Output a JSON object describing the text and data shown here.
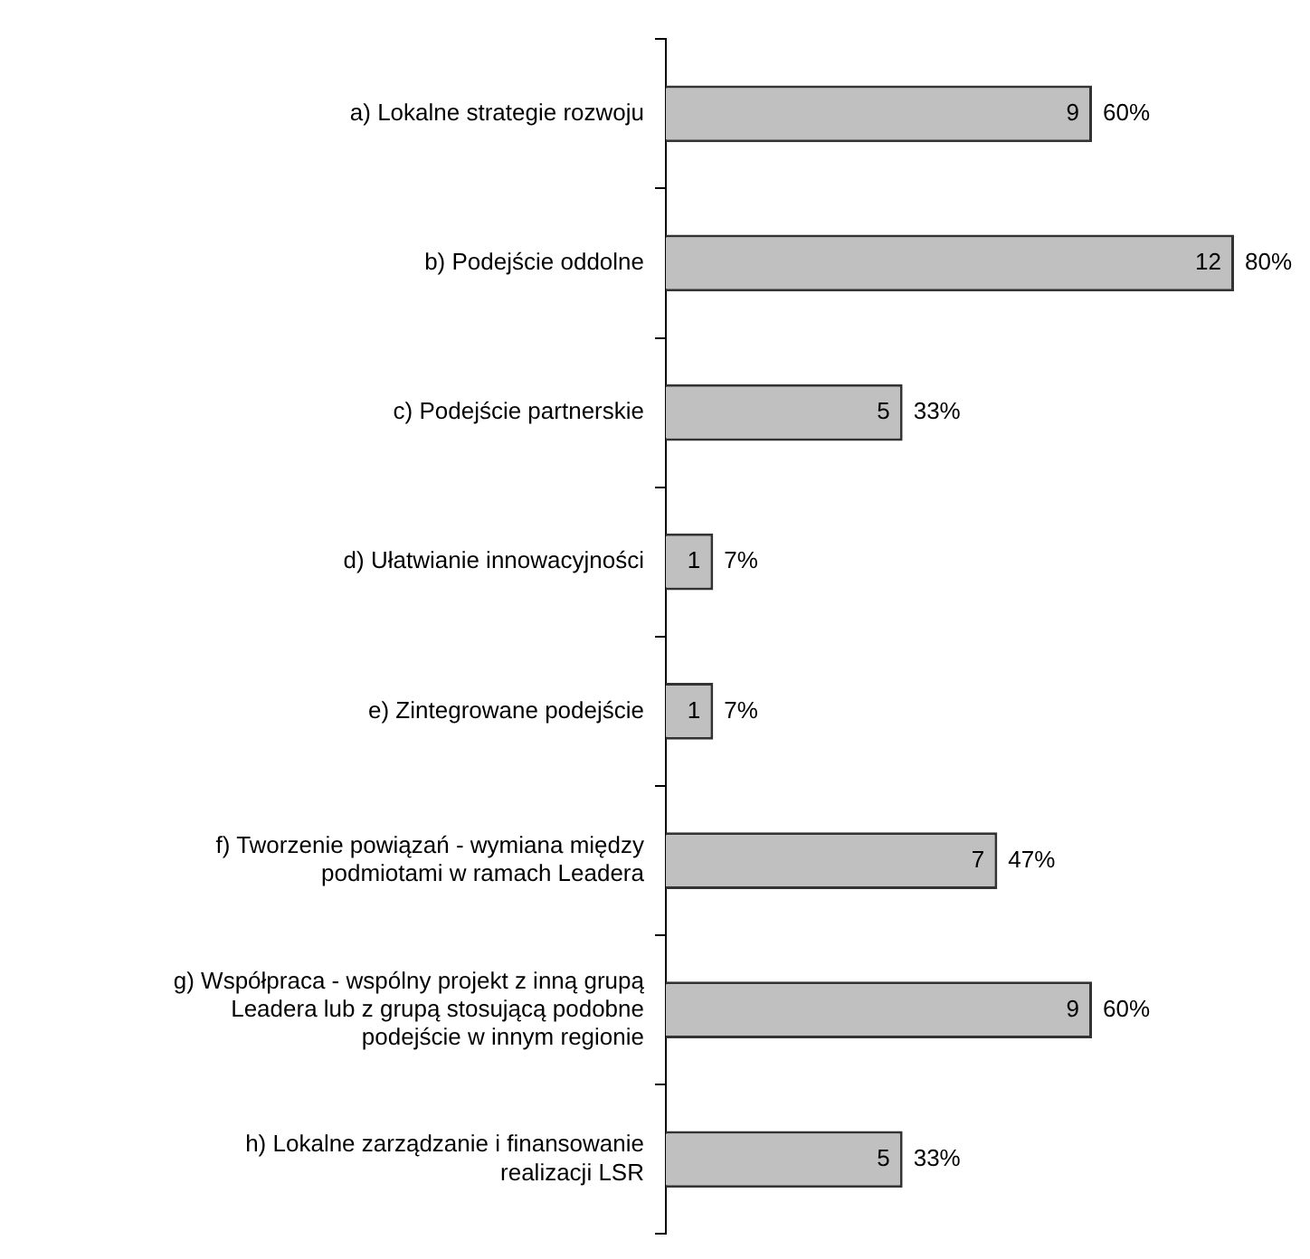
{
  "chart_data": {
    "type": "bar",
    "orientation": "horizontal",
    "categories": [
      "a) Lokalne strategie rozwoju",
      "b) Podejście oddolne",
      "c) Podejście partnerskie",
      "d) Ułatwianie innowacyjności",
      "e) Zintegrowane podejście",
      "f) Tworzenie powiązań - wymiana między podmiotami w ramach Leadera",
      "g) Współpraca - wspólny projekt z inną grupą Leadera lub z grupą stosującą podobne podejście w innym regionie",
      "h) Lokalne zarządzanie i finansowanie realizacji LSR"
    ],
    "values": [
      9,
      12,
      5,
      1,
      1,
      7,
      9,
      5
    ],
    "value_labels": [
      "9",
      "12",
      "5",
      "1",
      "1",
      "7",
      "9",
      "5"
    ],
    "annotations": [
      {
        "text": "60%",
        "x": 9,
        "y": "a) Lokalne strategie rozwoju"
      },
      {
        "text": "80%",
        "x": 12,
        "y": "b) Podejście oddolne"
      },
      {
        "text": "33%",
        "x": 5,
        "y": "c) Podejście partnerskie"
      },
      {
        "text": "7%",
        "x": 1,
        "y": "d) Ułatwianie innowacyjności"
      },
      {
        "text": "7%",
        "x": 1,
        "y": "e) Zintegrowane podejście"
      },
      {
        "text": "47%",
        "x": 7,
        "y": "f) Tworzenie powiązań - wymiana między podmiotami w ramach Leadera"
      },
      {
        "text": "60%",
        "x": 9,
        "y": "g) Współpraca - wspólny projekt z inną grupą Leadera lub z grupą stosującą podobne podejście w innym regionie"
      },
      {
        "text": "33%",
        "x": 5,
        "y": "h) Lokalne zarządzanie i finansowanie realizacji LSR"
      }
    ],
    "color": "#c0c0c0",
    "tick_labels": "y",
    "legend": false
  }
}
